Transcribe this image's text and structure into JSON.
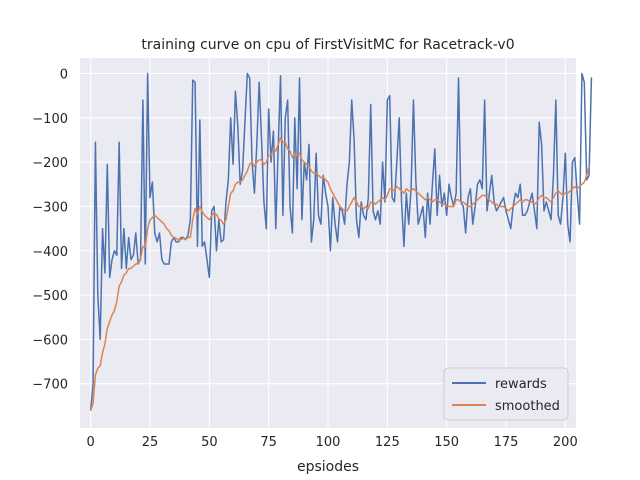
{
  "chart_data": {
    "type": "line",
    "title": "training curve on cpu of FirstVisitMC for Racetrack-v0",
    "xlabel": "epsiodes",
    "ylabel": "",
    "xlim": [
      -4.5,
      204.5
    ],
    "ylim": [
      -800,
      35
    ],
    "xticks": [
      0,
      25,
      50,
      75,
      100,
      125,
      150,
      175,
      200
    ],
    "yticks": [
      0,
      -100,
      -200,
      -300,
      -400,
      -500,
      -600,
      -700
    ],
    "ytick_labels": [
      "0",
      "−100",
      "−200",
      "−300",
      "−400",
      "−500",
      "−600",
      "−700"
    ],
    "grid": true,
    "legend": {
      "position": "lower-right"
    },
    "background": "#eaeaf2",
    "series": [
      {
        "name": "rewards",
        "color": "#4c72b0",
        "values": [
          -760,
          -700,
          -155,
          -500,
          -600,
          -350,
          -450,
          -205,
          -460,
          -420,
          -400,
          -410,
          -155,
          -440,
          -350,
          -440,
          -370,
          -420,
          -410,
          -360,
          -430,
          -420,
          -60,
          -430,
          0,
          -280,
          -245,
          -360,
          -380,
          -360,
          -420,
          -430,
          -430,
          -430,
          -380,
          -370,
          -380,
          -380,
          -370,
          -370,
          -375,
          -365,
          -330,
          -15,
          -20,
          -390,
          -105,
          -390,
          -380,
          -420,
          -460,
          -310,
          -300,
          -400,
          -330,
          -380,
          -375,
          -290,
          -240,
          -100,
          -205,
          -40,
          -120,
          -250,
          -220,
          -110,
          0,
          -10,
          -200,
          -270,
          -160,
          -20,
          -150,
          -290,
          -350,
          -80,
          -200,
          -130,
          -350,
          -170,
          -5,
          -320,
          -100,
          -60,
          -300,
          -360,
          -100,
          -260,
          -10,
          -330,
          -200,
          -240,
          -160,
          -380,
          -330,
          -180,
          -320,
          -340,
          -230,
          -270,
          -300,
          -400,
          -280,
          -340,
          -380,
          -300,
          -310,
          -340,
          -250,
          -200,
          -60,
          -150,
          -330,
          -370,
          -290,
          -320,
          -330,
          -280,
          -70,
          -310,
          -330,
          -310,
          -340,
          -200,
          -290,
          -60,
          -50,
          -280,
          -290,
          -200,
          -100,
          -290,
          -390,
          -270,
          -340,
          -260,
          -60,
          -240,
          -340,
          -320,
          -300,
          -370,
          -270,
          -340,
          -250,
          -170,
          -320,
          -230,
          -300,
          -270,
          -320,
          -250,
          -280,
          -300,
          -270,
          -10,
          -290,
          -300,
          -360,
          -280,
          -260,
          -340,
          -300,
          -250,
          -240,
          -260,
          -60,
          -310,
          -270,
          -230,
          -290,
          -310,
          -300,
          -290,
          -280,
          -310,
          -330,
          -350,
          -300,
          -270,
          -280,
          -250,
          -320,
          -320,
          -310,
          -290,
          -270,
          -310,
          -350,
          -110,
          -160,
          -310,
          -290,
          -310,
          -330,
          -230,
          -60,
          -320,
          -340,
          -280,
          -180,
          -340,
          -380,
          -200,
          -190,
          -270,
          -340,
          0,
          -20,
          -240,
          -230,
          -10
        ]
      },
      {
        "name": "smoothed",
        "color": "#dd8452",
        "values": [
          -760,
          -745,
          -680,
          -665,
          -660,
          -630,
          -610,
          -575,
          -560,
          -545,
          -535,
          -515,
          -480,
          -470,
          -455,
          -450,
          -440,
          -440,
          -435,
          -430,
          -428,
          -418,
          -390,
          -392,
          -350,
          -330,
          -325,
          -320,
          -325,
          -330,
          -335,
          -340,
          -350,
          -355,
          -365,
          -370,
          -372,
          -375,
          -375,
          -372,
          -375,
          -370,
          -370,
          -330,
          -305,
          -318,
          -300,
          -312,
          -320,
          -325,
          -330,
          -320,
          -315,
          -318,
          -328,
          -332,
          -340,
          -330,
          -300,
          -270,
          -265,
          -250,
          -245,
          -245,
          -240,
          -230,
          -220,
          -205,
          -200,
          -210,
          -200,
          -195,
          -195,
          -205,
          -200,
          -185,
          -185,
          -170,
          -175,
          -160,
          -145,
          -155,
          -155,
          -170,
          -175,
          -190,
          -180,
          -185,
          -180,
          -195,
          -200,
          -205,
          -210,
          -220,
          -225,
          -225,
          -230,
          -235,
          -235,
          -240,
          -245,
          -260,
          -270,
          -280,
          -290,
          -300,
          -305,
          -310,
          -310,
          -300,
          -290,
          -280,
          -290,
          -300,
          -300,
          -305,
          -300,
          -305,
          -290,
          -290,
          -295,
          -290,
          -285,
          -280,
          -285,
          -275,
          -260,
          -260,
          -265,
          -255,
          -260,
          -265,
          -270,
          -260,
          -265,
          -265,
          -260,
          -265,
          -270,
          -275,
          -280,
          -285,
          -280,
          -285,
          -290,
          -285,
          -285,
          -290,
          -295,
          -295,
          -300,
          -300,
          -300,
          -300,
          -285,
          -285,
          -290,
          -290,
          -295,
          -300,
          -300,
          -295,
          -290,
          -285,
          -280,
          -275,
          -275,
          -280,
          -285,
          -290,
          -295,
          -295,
          -300,
          -300,
          -300,
          -305,
          -310,
          -305,
          -300,
          -295,
          -290,
          -285,
          -290,
          -285,
          -285,
          -290,
          -290,
          -295,
          -290,
          -280,
          -275,
          -280,
          -280,
          -285,
          -290,
          -280,
          -270,
          -265,
          -270,
          -275,
          -270,
          -270,
          -265,
          -260,
          -255,
          -260,
          -255,
          -250,
          -245,
          -230,
          -210
        ]
      }
    ]
  }
}
